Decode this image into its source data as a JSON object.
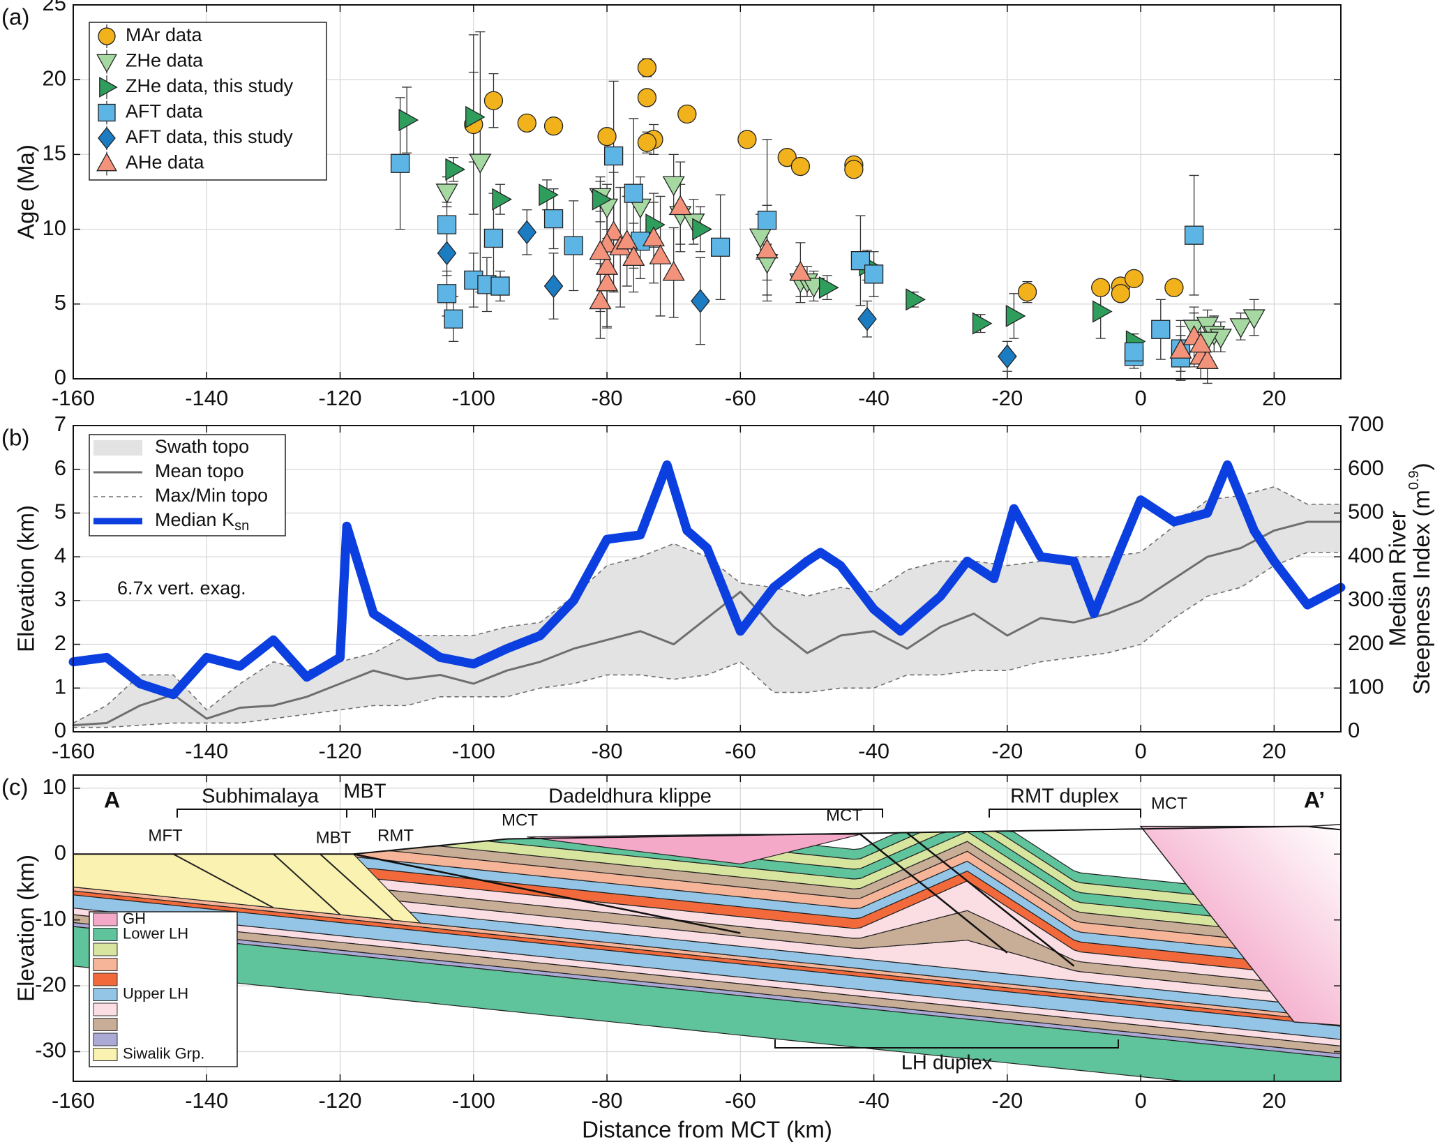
{
  "chart_data": [
    {
      "type": "scatter",
      "label": "(a)",
      "ylabel": "Age (Ma)",
      "xlim": [
        -160,
        30
      ],
      "xticks": [
        -160,
        -140,
        -120,
        -100,
        -80,
        -60,
        -40,
        -20,
        0,
        20
      ],
      "ylim": [
        0,
        25
      ],
      "yticks": [
        0,
        5,
        10,
        15,
        20,
        25
      ],
      "grid": true,
      "legend": "upper left",
      "series": [
        {
          "name": "MAr data",
          "color": "#f2b21c",
          "marker": "circle",
          "x": [
            -97,
            -100,
            -92,
            -88,
            -80,
            -74,
            -74,
            -73,
            -74,
            -68,
            -59,
            -53,
            -51,
            -43,
            -43,
            -17,
            -6,
            -3,
            -3,
            -1,
            5
          ],
          "values": [
            18.6,
            17,
            17.1,
            16.9,
            16.2,
            20.8,
            18.8,
            16,
            15.8,
            17.7,
            16,
            14.8,
            14.2,
            14.3,
            14,
            5.8,
            6.1,
            6.2,
            5.7,
            6.7,
            6.1
          ],
          "errors": [
            1.8,
            6,
            0.3,
            0.3,
            0.5,
            0.6,
            0.5,
            1,
            0.7,
            0.4,
            0.4,
            0.5,
            0.5,
            0.3,
            0.3,
            0.7,
            0.4,
            0.3,
            0.4,
            0.4,
            0.4
          ]
        },
        {
          "name": "ZHe data",
          "color": "#a6d9a2",
          "marker": "down",
          "x": [
            -104,
            -99,
            -81,
            -80,
            -75,
            -70,
            -69,
            -67,
            -57,
            -56,
            -51,
            -50,
            -49,
            8,
            10,
            11,
            12,
            15,
            17,
            10
          ],
          "values": [
            12.5,
            14.5,
            12.2,
            11.5,
            11.5,
            13,
            11,
            10.5,
            9.5,
            7.8,
            6.5,
            6.5,
            6.2,
            3.4,
            3.6,
            3,
            2.8,
            3.5,
            4.1,
            2.6
          ],
          "errors": [
            1,
            8.7,
            1,
            1.5,
            2,
            2,
            2,
            1.5,
            1.5,
            1.2,
            1,
            1,
            1,
            1,
            1,
            1.2,
            1,
            0.9,
            1.2,
            1.2
          ]
        },
        {
          "name": "ZHe data, this study",
          "color": "#2f9e5c",
          "marker": "right",
          "x": [
            -110,
            -103,
            -100,
            -96,
            -89,
            -81,
            -73,
            -66,
            -47,
            -41,
            -34,
            -24,
            -19,
            -6,
            -1
          ],
          "values": [
            17.3,
            14,
            17.5,
            12,
            12.3,
            12,
            10.3,
            10,
            6.1,
            7.6,
            5.3,
            3.7,
            4.2,
            4.5,
            2.5
          ],
          "errors": [
            2.2,
            0.8,
            3,
            1,
            1,
            1.5,
            1.5,
            1.5,
            0.8,
            1,
            0.5,
            0.6,
            1.5,
            1.8,
            0.5
          ]
        },
        {
          "name": "AFT data",
          "color": "#5db5e6",
          "marker": "square",
          "x": [
            -111,
            -104,
            -104,
            -103,
            -100,
            -98,
            -97,
            -96,
            -88,
            -85,
            -79,
            -76,
            -75,
            -63,
            -56,
            -42,
            -40,
            -1,
            -1,
            3,
            6,
            8,
            6
          ],
          "values": [
            14.4,
            10.3,
            5.7,
            4,
            6.6,
            6.3,
            9.4,
            6.2,
            10.7,
            8.9,
            14.9,
            12.4,
            9.2,
            8.8,
            10.6,
            7.9,
            7,
            1.5,
            1.8,
            3.3,
            1.4,
            9.6,
            2
          ],
          "errors": [
            4.4,
            1.5,
            1.5,
            1.5,
            1.8,
            1.8,
            3,
            1,
            2,
            3,
            5,
            5,
            2.5,
            3.5,
            5.4,
            3,
            1.5,
            0.8,
            0.8,
            2,
            1.5,
            4,
            1.5
          ]
        },
        {
          "name": "AFT data, this study",
          "color": "#1c7cc2",
          "marker": "diamond",
          "x": [
            -104,
            -92,
            -88,
            -66,
            -41,
            -20
          ],
          "values": [
            8.4,
            9.8,
            6.2,
            5.2,
            4,
            1.5
          ],
          "errors": [
            1.5,
            1.5,
            2.2,
            2.9,
            1.2,
            1
          ]
        },
        {
          "name": "AHe data",
          "color": "#f4937b",
          "marker": "up",
          "x": [
            -81,
            -80,
            -79,
            -80,
            -80,
            -81,
            -78,
            -77,
            -76,
            -73,
            -72,
            -70,
            -69,
            -56,
            -51,
            6,
            8,
            9,
            10,
            9
          ],
          "values": [
            5.2,
            6.4,
            9.8,
            9,
            7.5,
            8.5,
            8.8,
            9.2,
            8.1,
            9.4,
            8.2,
            7.1,
            11.5,
            8.6,
            7.1,
            1.9,
            2.8,
            1.5,
            1.2,
            2.3
          ],
          "errors": [
            2.5,
            3,
            4,
            3,
            4,
            4,
            4,
            3,
            2.3,
            3,
            4,
            3,
            3,
            3,
            2,
            2,
            2,
            1.5,
            1.5,
            1.5
          ]
        }
      ]
    },
    {
      "type": "line",
      "label": "(b)",
      "ylabel": "Elevation (km)",
      "y2label": {
        "line1": "Median River",
        "line2": "Steepness Index (m",
        "sup": "0.9",
        "end": ")"
      },
      "annotation": "6.7x vert. exag.",
      "xlim": [
        -160,
        30
      ],
      "xticks": [
        -160,
        -140,
        -120,
        -100,
        -80,
        -60,
        -40,
        -20,
        0,
        20
      ],
      "ylim": [
        0,
        7
      ],
      "yticks": [
        0,
        1,
        2,
        3,
        4,
        5,
        6,
        7
      ],
      "y2lim": [
        0,
        700
      ],
      "y2ticks": [
        0,
        100,
        200,
        300,
        400,
        500,
        600,
        700
      ],
      "grid": true,
      "legend": "upper left",
      "series": [
        {
          "name": "Swath topo",
          "color": "#e3e3e3",
          "x": [
            -160,
            -155,
            -150,
            -145,
            -140,
            -135,
            -130,
            -125,
            -120,
            -115,
            -110,
            -105,
            -100,
            -95,
            -90,
            -85,
            -80,
            -75,
            -70,
            -65,
            -60,
            -55,
            -50,
            -45,
            -40,
            -35,
            -30,
            -25,
            -20,
            -15,
            -10,
            -5,
            0,
            5,
            10,
            15,
            20,
            25,
            30
          ],
          "upper": [
            0.2,
            0.6,
            1.3,
            1.3,
            0.5,
            1.1,
            1.6,
            1.4,
            1.6,
            1.8,
            2.2,
            2.2,
            2.2,
            2.4,
            2.5,
            3.1,
            3.8,
            4.0,
            4.3,
            4.0,
            3.4,
            3.3,
            3.1,
            3.3,
            3.2,
            3.7,
            3.9,
            3.9,
            3.8,
            3.9,
            4.0,
            4.0,
            4.1,
            4.7,
            5.3,
            5.4,
            5.6,
            5.2,
            5.2
          ],
          "lower": [
            0.1,
            0.1,
            0.15,
            0.2,
            0.2,
            0.2,
            0.3,
            0.4,
            0.5,
            0.6,
            0.6,
            0.8,
            0.8,
            0.8,
            1.0,
            1.1,
            1.3,
            1.3,
            1.2,
            1.3,
            1.6,
            0.9,
            0.9,
            1.0,
            1.0,
            1.3,
            1.3,
            1.4,
            1.4,
            1.6,
            1.7,
            1.8,
            2.0,
            2.6,
            3.1,
            3.3,
            3.8,
            4.1,
            4.1
          ]
        },
        {
          "name": "Mean topo",
          "color": "#6e6e6e",
          "x": [
            -160,
            -155,
            -150,
            -145,
            -140,
            -135,
            -130,
            -125,
            -120,
            -115,
            -110,
            -105,
            -100,
            -95,
            -90,
            -85,
            -80,
            -75,
            -70,
            -65,
            -60,
            -55,
            -50,
            -45,
            -40,
            -35,
            -30,
            -25,
            -20,
            -15,
            -10,
            -5,
            0,
            5,
            10,
            15,
            20,
            25,
            30
          ],
          "values": [
            0.15,
            0.2,
            0.6,
            0.85,
            0.3,
            0.55,
            0.6,
            0.8,
            1.1,
            1.4,
            1.2,
            1.3,
            1.1,
            1.4,
            1.6,
            1.9,
            2.1,
            2.3,
            2.0,
            2.6,
            3.2,
            2.4,
            1.8,
            2.2,
            2.3,
            1.9,
            2.4,
            2.7,
            2.2,
            2.6,
            2.5,
            2.7,
            3.0,
            3.5,
            4.0,
            4.2,
            4.6,
            4.8,
            4.8
          ]
        },
        {
          "name": "Max/Min topo",
          "color": "#6e6e6e",
          "dash": true
        },
        {
          "name": "Median K",
          "name_sub": "sn",
          "color": "#0b3fe0",
          "axis": "y2",
          "x": [
            -160,
            -155,
            -150,
            -145,
            -140,
            -135,
            -130,
            -125,
            -120,
            -119,
            -115,
            -110,
            -105,
            -100,
            -95,
            -90,
            -85,
            -80,
            -75,
            -71,
            -68,
            -65,
            -60,
            -55,
            -50,
            -48,
            -45,
            -40,
            -36,
            -30,
            -26,
            -22,
            -19,
            -15,
            -10,
            -7,
            -3,
            0,
            5,
            10,
            13,
            17,
            20,
            25,
            30
          ],
          "values": [
            160,
            170,
            110,
            85,
            170,
            150,
            210,
            125,
            170,
            470,
            270,
            220,
            170,
            155,
            190,
            220,
            300,
            440,
            450,
            610,
            460,
            420,
            230,
            330,
            390,
            410,
            380,
            280,
            230,
            310,
            390,
            350,
            510,
            400,
            390,
            270,
            420,
            530,
            480,
            500,
            610,
            460,
            390,
            290,
            330
          ]
        }
      ]
    },
    {
      "type": "section",
      "label": "(c)",
      "ylabel": "Elevation (km)",
      "xlabel": "Distance from MCT (km)",
      "xlim": [
        -160,
        30
      ],
      "xticks": [
        -160,
        -140,
        -120,
        -100,
        -80,
        -60,
        -40,
        -20,
        0,
        20
      ],
      "ylim": [
        -34.5,
        12
      ],
      "yticks": [
        -30,
        -20,
        -10,
        0,
        10
      ],
      "grid": true,
      "legend": "lower left",
      "units": [
        {
          "name": "GH",
          "color": "#f4a9c9"
        },
        {
          "name": "Lower LH",
          "color": "#5fc39b"
        },
        {
          "name": null,
          "color": "#d8e59f"
        },
        {
          "name": null,
          "color": "#f6b499"
        },
        {
          "name": null,
          "color": "#f26a3b"
        },
        {
          "name": "Upper LH",
          "color": "#94c5e7"
        },
        {
          "name": null,
          "color": "#fbdde4"
        },
        {
          "name": null,
          "color": "#c8ad97"
        },
        {
          "name": null,
          "color": "#abaad6"
        },
        {
          "name": "Siwalik Grp.",
          "color": "#faf2b0"
        }
      ],
      "annotations": [
        "A",
        "A’",
        "Subhimalaya",
        "MBT",
        "Dadeldhura klippe",
        "RMT duplex",
        "MCT",
        "MFT",
        "MBT",
        "RMT",
        "MCT",
        "MCT",
        "LH duplex"
      ]
    }
  ]
}
